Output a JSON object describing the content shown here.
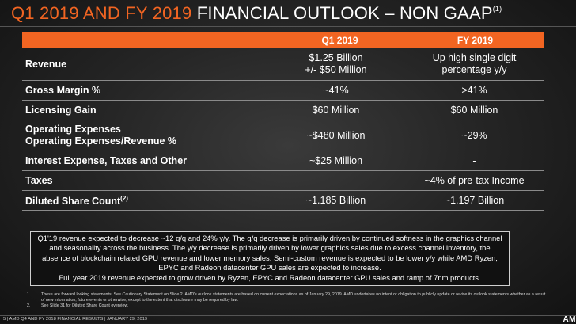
{
  "title": {
    "part1": "Q1 2019 AND FY 2019",
    "part2": " FINANCIAL OUTLOOK – NON GAAP",
    "sup": "(1)"
  },
  "table": {
    "headers": [
      "",
      "Q1 2019",
      "FY 2019"
    ],
    "rows": [
      {
        "label": "Revenue",
        "label2": "",
        "sup": "",
        "q1": "$1.25 Billion",
        "q1b": "+/- $50 Million",
        "fy": "Up high single digit",
        "fyb": "percentage y/y"
      },
      {
        "label": "Gross Margin %",
        "label2": "",
        "sup": "",
        "q1": "~41%",
        "q1b": "",
        "fy": ">41%",
        "fyb": ""
      },
      {
        "label": "Licensing Gain",
        "label2": "",
        "sup": "",
        "q1": "$60 Million",
        "q1b": "",
        "fy": "$60 Million",
        "fyb": ""
      },
      {
        "label": "Operating Expenses",
        "label2": "Operating Expenses/Revenue %",
        "sup": "",
        "q1": "~$480 Million",
        "q1b": "",
        "fy": "~29%",
        "fyb": ""
      },
      {
        "label": "Interest Expense, Taxes and Other",
        "label2": "",
        "sup": "",
        "q1": "~$25 Million",
        "q1b": "",
        "fy": "-",
        "fyb": ""
      },
      {
        "label": "Taxes",
        "label2": "",
        "sup": "",
        "q1": "-",
        "q1b": "",
        "fy": "~4% of pre-tax Income",
        "fyb": ""
      },
      {
        "label": "Diluted Share Count",
        "label2": "",
        "sup": "(2)",
        "q1": "~1.185 Billion",
        "q1b": "",
        "fy": "~1.197 Billion",
        "fyb": ""
      }
    ]
  },
  "note": {
    "p1": "Q1'19 revenue expected to decrease ~12 q/q and 24% y/y. The q/q decrease is primarily driven by continued softness in the graphics channel and seasonality across the business. The y/y decrease is primarily driven by lower graphics sales due to excess channel inventory, the absence of blockchain related GPU revenue and lower memory sales. Semi-custom revenue is expected to be lower y/y while AMD Ryzen, EPYC and Radeon datacenter GPU sales are expected to increase.",
    "p2": "Full year 2019 revenue expected to grow driven by Ryzen, EPYC and Radeon datacenter GPU sales and ramp of 7nm products."
  },
  "footnotes": [
    {
      "num": "1.",
      "text": "These are forward looking statements. See Cautionary Statement on Slide 2. AMD's outlook statements are based on current expectations as of January 29, 2019. AMD undertakes no intent or obligation to publicly update or revise its outlook statements whether as a result of new information, future events or otherwise, except to the extent that disclosure may be required by law."
    },
    {
      "num": "2.",
      "text": "See Slide 31 for Diluted Share Count overview."
    }
  ],
  "footer": "5 | AMD Q4 AND FY 2018 FINANCIAL RESULTS | JANUARY 29, 2019",
  "logo": "AM"
}
